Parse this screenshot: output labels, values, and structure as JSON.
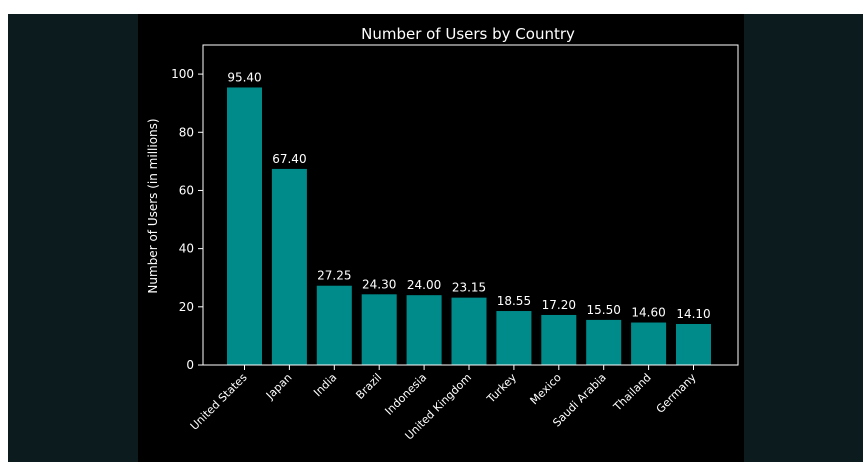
{
  "chart_data": {
    "type": "bar",
    "title": "Number of Users by Country",
    "xlabel": "",
    "ylabel": "Number of Users (in millions)",
    "ylim": [
      0,
      110
    ],
    "yticks": [
      0,
      20,
      40,
      60,
      80,
      100
    ],
    "categories": [
      "United States",
      "Japan",
      "India",
      "Brazil",
      "Indonesia",
      "United Kingdom",
      "Turkey",
      "Mexico",
      "Saudi Arabia",
      "Thailand",
      "Germany"
    ],
    "values": [
      95.4,
      67.4,
      27.25,
      24.3,
      24.0,
      23.15,
      18.55,
      17.2,
      15.5,
      14.6,
      14.1
    ],
    "data_labels": [
      "95.40",
      "67.40",
      "27.25",
      "24.30",
      "24.00",
      "23.15",
      "18.55",
      "17.20",
      "15.50",
      "14.60",
      "14.10"
    ],
    "bar_color": "#008b8b",
    "grid": false,
    "background": "#000000"
  }
}
